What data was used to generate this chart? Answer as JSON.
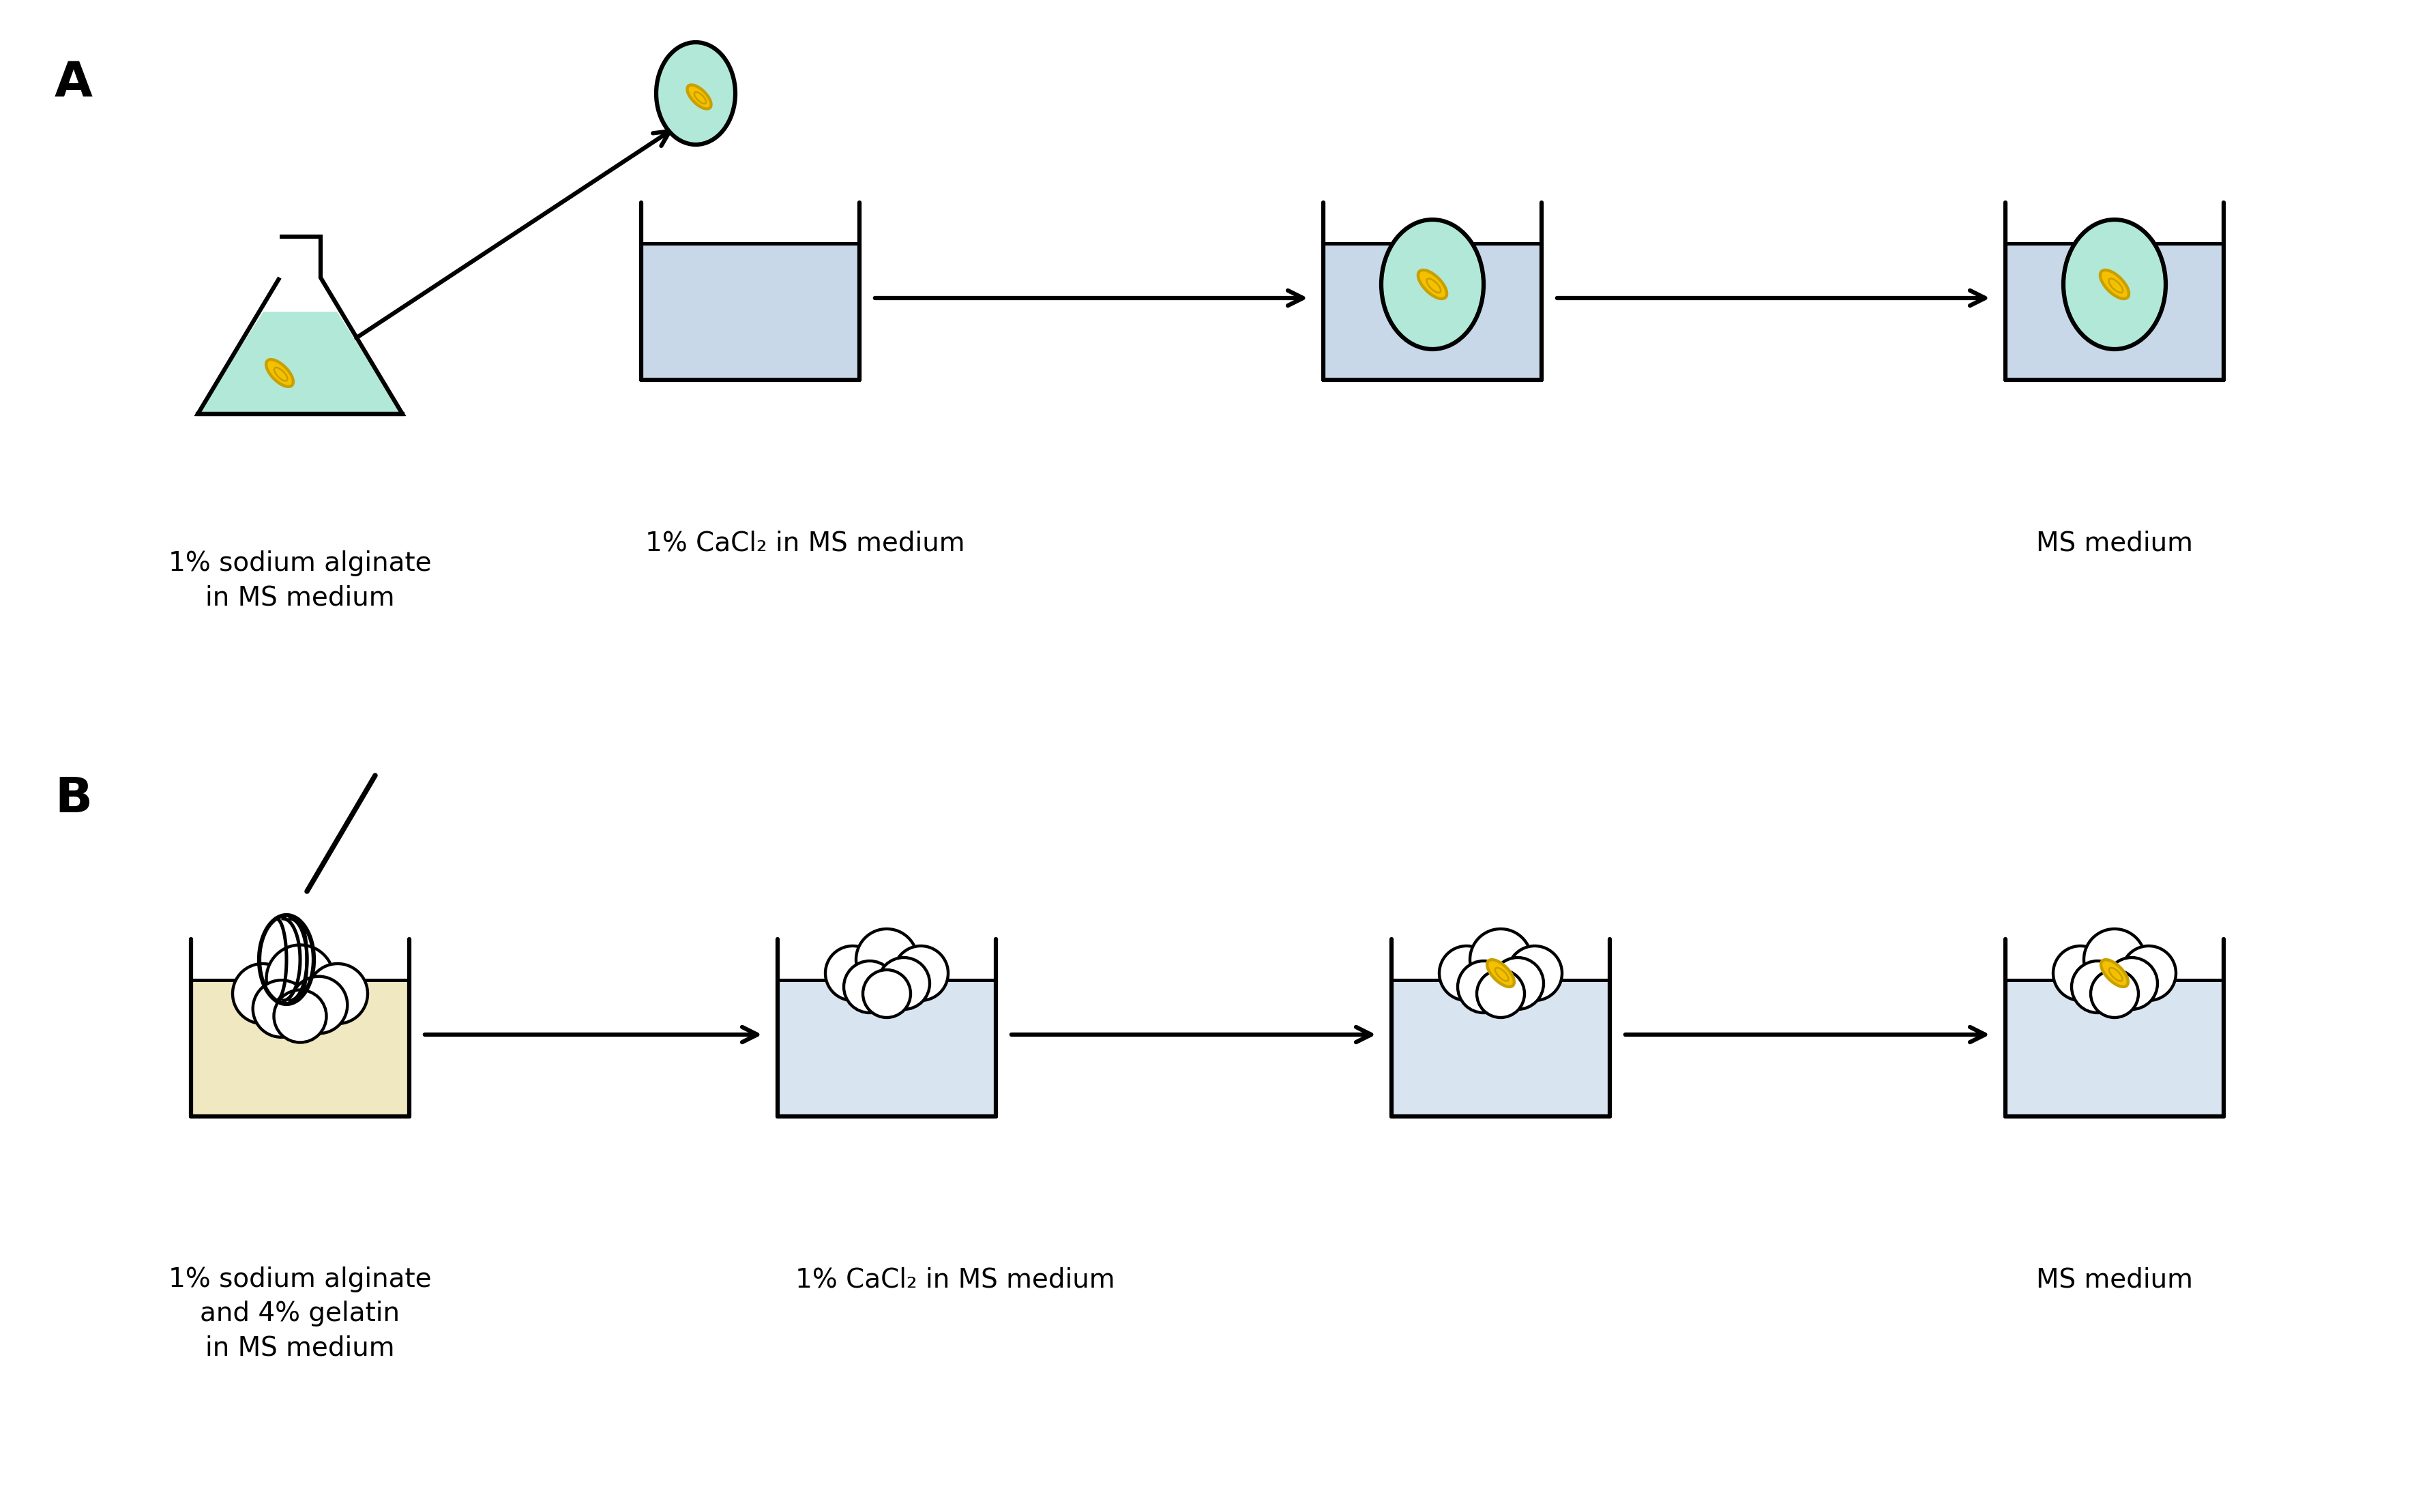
{
  "bg_color": "#ffffff",
  "label_A": "A",
  "label_B": "B",
  "flask_liquid_color": "#b2e8d8",
  "beaker_liquid_color_A": "#c8d8e8",
  "beaker_liquid_color_B": "#d8e4f0",
  "bead_color": "#b2e8d8",
  "embryo_color": "#f5c000",
  "embryo_outline": "#c8a000",
  "foam_color": "#ffffff",
  "gelatin_liquid_color": "#f0e8c0",
  "line_color": "#000000",
  "label1_A": "1% sodium alginate\nin MS medium",
  "label2_A": "1% CaCl₂ in MS medium",
  "label3_A": "MS medium",
  "label1_B": "1% sodium alginate\nand 4% gelatin\nin MS medium",
  "label2_B": "1% CaCl₂ in MS medium",
  "label3_B": "MS medium",
  "font_size_label": 28,
  "font_size_AB": 52
}
